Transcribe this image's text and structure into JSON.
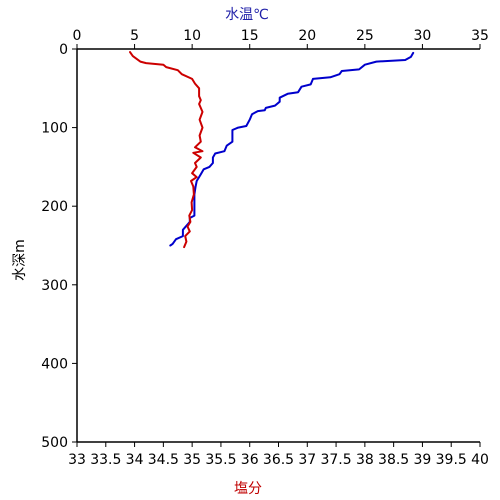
{
  "chart_data": {
    "type": "line",
    "title": "",
    "ylabel": "水深m",
    "ylim": [
      0,
      500
    ],
    "ytick_labels": [
      "0",
      "100",
      "200",
      "300",
      "400",
      "500"
    ],
    "ytick_values": [
      0,
      100,
      200,
      300,
      400,
      500
    ],
    "y_inverted": true,
    "x_bottom": {
      "label": "塩分",
      "label_color": "#c00000",
      "range": [
        33,
        40
      ],
      "tick_labels": [
        "33",
        "33.5",
        "34",
        "34.5",
        "35",
        "35.5",
        "36",
        "36.5",
        "37",
        "37.5",
        "38",
        "38.5",
        "39",
        "39.5",
        "40"
      ],
      "tick_values": [
        33,
        33.5,
        34,
        34.5,
        35,
        35.5,
        36,
        36.5,
        37,
        37.5,
        38,
        38.5,
        39,
        39.5,
        40
      ]
    },
    "x_top": {
      "label": "水温℃",
      "label_color": "#1f1fa8",
      "range": [
        0,
        35
      ],
      "tick_labels": [
        "0",
        "5",
        "10",
        "15",
        "20",
        "25",
        "30",
        "35"
      ],
      "tick_values": [
        0,
        5,
        10,
        15,
        20,
        25,
        30,
        35
      ]
    },
    "grid": false,
    "legend": "none",
    "series": [
      {
        "key": "temperature",
        "axis": "top",
        "color": "#0000cc",
        "points": [
          [
            29.2,
            5
          ],
          [
            29.0,
            10
          ],
          [
            28.5,
            14
          ],
          [
            26.0,
            16
          ],
          [
            25.0,
            20
          ],
          [
            24.5,
            26
          ],
          [
            23.0,
            28
          ],
          [
            22.8,
            32
          ],
          [
            22.0,
            36
          ],
          [
            20.5,
            38
          ],
          [
            20.3,
            45
          ],
          [
            19.5,
            48
          ],
          [
            19.2,
            55
          ],
          [
            18.3,
            57
          ],
          [
            17.6,
            62
          ],
          [
            17.6,
            67
          ],
          [
            17.2,
            72
          ],
          [
            16.4,
            75
          ],
          [
            16.3,
            78
          ],
          [
            15.7,
            79
          ],
          [
            15.2,
            83
          ],
          [
            15.0,
            90
          ],
          [
            14.7,
            98
          ],
          [
            14.0,
            100
          ],
          [
            13.5,
            103
          ],
          [
            13.5,
            118
          ],
          [
            13.0,
            123
          ],
          [
            12.8,
            130
          ],
          [
            12.0,
            133
          ],
          [
            11.8,
            138
          ],
          [
            11.8,
            145
          ],
          [
            11.5,
            150
          ],
          [
            11.0,
            153
          ],
          [
            10.8,
            158
          ],
          [
            10.6,
            163
          ],
          [
            10.4,
            168
          ],
          [
            10.3,
            175
          ],
          [
            10.2,
            185
          ],
          [
            10.2,
            205
          ],
          [
            10.2,
            212
          ],
          [
            9.8,
            215
          ],
          [
            9.8,
            220
          ],
          [
            9.5,
            225
          ],
          [
            9.2,
            230
          ],
          [
            9.2,
            238
          ],
          [
            8.6,
            242
          ],
          [
            8.3,
            248
          ],
          [
            8.1,
            250
          ]
        ]
      },
      {
        "key": "salinity",
        "axis": "bottom",
        "color": "#cc0000",
        "points": [
          [
            33.92,
            4
          ],
          [
            33.97,
            9
          ],
          [
            34.1,
            16
          ],
          [
            34.2,
            18
          ],
          [
            34.5,
            20
          ],
          [
            34.55,
            23
          ],
          [
            34.75,
            27
          ],
          [
            34.82,
            32
          ],
          [
            35.0,
            38
          ],
          [
            35.05,
            44
          ],
          [
            35.12,
            50
          ],
          [
            35.12,
            60
          ],
          [
            35.15,
            65
          ],
          [
            35.12,
            70
          ],
          [
            35.18,
            80
          ],
          [
            35.13,
            90
          ],
          [
            35.18,
            100
          ],
          [
            35.13,
            110
          ],
          [
            35.15,
            118
          ],
          [
            35.05,
            125
          ],
          [
            35.18,
            130
          ],
          [
            35.02,
            132
          ],
          [
            35.15,
            138
          ],
          [
            35.05,
            145
          ],
          [
            35.08,
            150
          ],
          [
            35.0,
            158
          ],
          [
            35.08,
            163
          ],
          [
            34.98,
            168
          ],
          [
            35.02,
            175
          ],
          [
            35.03,
            185
          ],
          [
            34.99,
            195
          ],
          [
            35.0,
            205
          ],
          [
            34.95,
            212
          ],
          [
            34.97,
            220
          ],
          [
            34.92,
            226
          ],
          [
            34.96,
            232
          ],
          [
            34.88,
            238
          ],
          [
            34.9,
            245
          ],
          [
            34.86,
            252
          ]
        ]
      }
    ]
  }
}
